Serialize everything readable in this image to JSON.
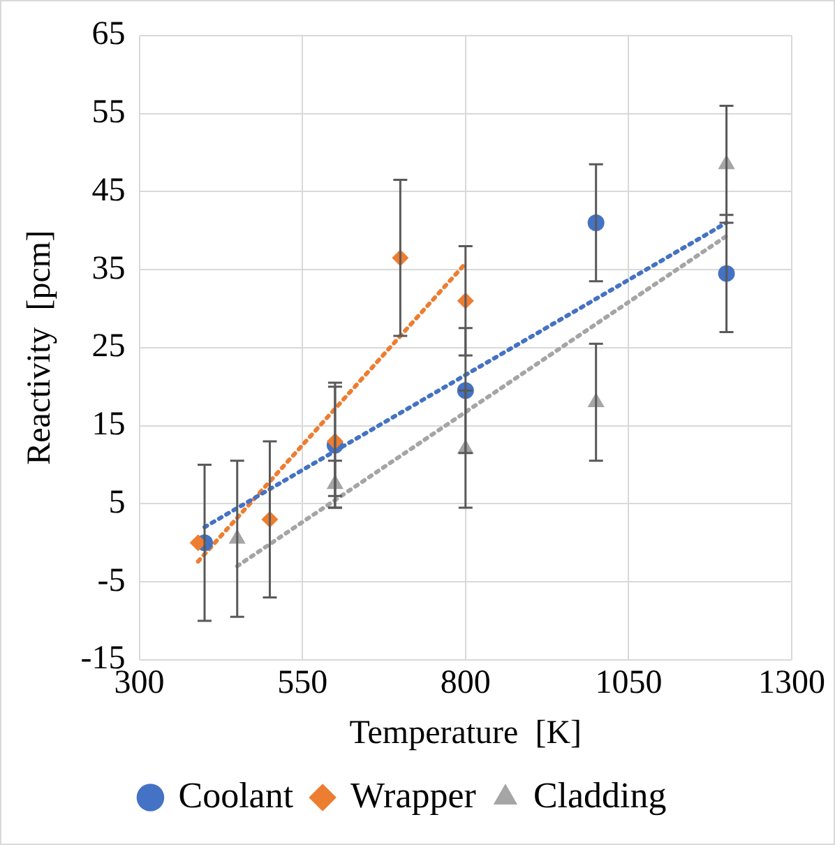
{
  "chart_data": {
    "type": "scatter",
    "xlabel": "Temperature  [K]",
    "ylabel": "Reactivity  [pcm]",
    "xlim": [
      300,
      1300
    ],
    "xticks": [
      300,
      550,
      800,
      1050,
      1300
    ],
    "ylim": [
      -15,
      65
    ],
    "yticks": [
      -15,
      -5,
      5,
      15,
      25,
      35,
      45,
      55,
      65
    ],
    "grid": true,
    "legend": "bottom",
    "x": [
      400,
      600,
      800,
      1000,
      1200
    ],
    "series": [
      {
        "name": "Coolant",
        "color": "#4472c4",
        "marker": "circle",
        "values": [
          0,
          12.5,
          19.5,
          41,
          34.5
        ],
        "errors": [
          10,
          8,
          8,
          7.5,
          7.5
        ]
      },
      {
        "name": "Wrapper",
        "color": "#ed7d31",
        "marker": "diamond",
        "x": [
          390,
          500,
          600,
          700,
          800
        ],
        "values": [
          0,
          3,
          13,
          36.5,
          31
        ],
        "errors": [
          null,
          10,
          7,
          10,
          7
        ]
      },
      {
        "name": "Cladding",
        "color": "#a5a5a5",
        "marker": "triangle",
        "x": [
          450,
          600,
          800,
          1000,
          1200
        ],
        "values": [
          0.5,
          7.5,
          12,
          18,
          48.5
        ],
        "errors": [
          10,
          3,
          7.5,
          7.5,
          7.5
        ]
      },
      {
        "type": "line",
        "color": "#4472c4",
        "line_style": "dotted",
        "marker": "none",
        "x": [
          400,
          1200
        ],
        "values": [
          2,
          41
        ]
      },
      {
        "type": "line",
        "color": "#ed7d31",
        "line_style": "dotted",
        "marker": "none",
        "x": [
          390,
          800
        ],
        "values": [
          -2.4,
          35.8
        ]
      },
      {
        "type": "line",
        "color": "#a5a5a5",
        "line_style": "dotted",
        "marker": "none",
        "x": [
          450,
          1200
        ],
        "values": [
          -3,
          39.3
        ]
      }
    ]
  }
}
